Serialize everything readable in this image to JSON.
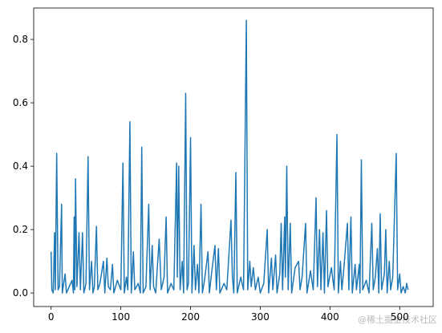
{
  "chart_data": {
    "type": "line",
    "color": "#1f77b4",
    "xlim": [
      -25,
      548
    ],
    "ylim": [
      -0.0428,
      0.899
    ],
    "xticks": [
      0,
      100,
      200,
      300,
      400,
      500
    ],
    "yticks": [
      {
        "value": 0,
        "label": "0.0"
      },
      {
        "value": 0.2,
        "label": "0.2"
      },
      {
        "value": 0.4,
        "label": "0.4"
      },
      {
        "value": 0.6,
        "label": "0.6"
      },
      {
        "value": 0.8,
        "label": "0.8"
      }
    ],
    "x": [
      0,
      1,
      3,
      5,
      6,
      8,
      10,
      12,
      15,
      16,
      18,
      20,
      22,
      26,
      30,
      32,
      33,
      34,
      35,
      37,
      40,
      42,
      45,
      47,
      50,
      53,
      55,
      58,
      60,
      62,
      65,
      67,
      70,
      75,
      77,
      80,
      82,
      85,
      88,
      90,
      95,
      100,
      103,
      105,
      108,
      110,
      113,
      115,
      118,
      120,
      125,
      128,
      130,
      132,
      136,
      140,
      142,
      145,
      147,
      150,
      155,
      158,
      162,
      165,
      167,
      172,
      176,
      180,
      181,
      183,
      185,
      188,
      190,
      193,
      195,
      197,
      200,
      202,
      205,
      207,
      210,
      212,
      215,
      217,
      220,
      225,
      227,
      230,
      235,
      237,
      240,
      242,
      248,
      252,
      258,
      260,
      262,
      265,
      267,
      272,
      276,
      280,
      282,
      285,
      287,
      290,
      293,
      297,
      300,
      305,
      310,
      312,
      316,
      318,
      322,
      324,
      328,
      330,
      332,
      335,
      336,
      338,
      340,
      343,
      345,
      350,
      355,
      357,
      360,
      365,
      367,
      372,
      376,
      380,
      382,
      385,
      387,
      390,
      392,
      395,
      397,
      402,
      406,
      410,
      412,
      415,
      417,
      420,
      425,
      427,
      430,
      432,
      436,
      438,
      442,
      443,
      445,
      447,
      452,
      456,
      460,
      462,
      465,
      468,
      470,
      472,
      474,
      478,
      480,
      482,
      485,
      487,
      490,
      495,
      497,
      500,
      502,
      505,
      508,
      510,
      512
    ],
    "values": [
      0.13,
      0.01,
      0.0,
      0.19,
      0.01,
      0.44,
      0.01,
      0.02,
      0.28,
      0.0,
      0.03,
      0.06,
      0.0,
      0.02,
      0.04,
      0.0,
      0.24,
      0.01,
      0.36,
      0.02,
      0.19,
      0.01,
      0.19,
      0.0,
      0.03,
      0.43,
      0.01,
      0.1,
      0.0,
      0.02,
      0.21,
      0.01,
      0.03,
      0.1,
      0.0,
      0.11,
      0.02,
      0.01,
      0.09,
      0.0,
      0.04,
      0.01,
      0.41,
      0.0,
      0.05,
      0.01,
      0.54,
      0.0,
      0.13,
      0.01,
      0.03,
      0.0,
      0.46,
      0.0,
      0.02,
      0.28,
      0.01,
      0.15,
      0.02,
      0.0,
      0.17,
      0.01,
      0.05,
      0.24,
      0.0,
      0.03,
      0.01,
      0.41,
      0.05,
      0.4,
      0.01,
      0.1,
      0.0,
      0.63,
      0.01,
      0.03,
      0.49,
      0.0,
      0.15,
      0.01,
      0.09,
      0.0,
      0.28,
      0.0,
      0.04,
      0.13,
      0.0,
      0.06,
      0.15,
      0.01,
      0.14,
      0.0,
      0.03,
      0.01,
      0.23,
      0.05,
      0.0,
      0.38,
      0.0,
      0.05,
      0.01,
      0.86,
      0.01,
      0.1,
      0.02,
      0.08,
      0.01,
      0.05,
      0.0,
      0.03,
      0.2,
      0.0,
      0.11,
      0.01,
      0.12,
      0.0,
      0.06,
      0.22,
      0.01,
      0.24,
      0.05,
      0.4,
      0.01,
      0.22,
      0.0,
      0.08,
      0.1,
      0.01,
      0.05,
      0.22,
      0.0,
      0.07,
      0.01,
      0.3,
      0.02,
      0.2,
      0.01,
      0.19,
      0.0,
      0.26,
      0.02,
      0.08,
      0.01,
      0.5,
      0.0,
      0.1,
      0.01,
      0.08,
      0.22,
      0.01,
      0.24,
      0.0,
      0.09,
      0.01,
      0.09,
      0.0,
      0.42,
      0.01,
      0.04,
      0.0,
      0.22,
      0.01,
      0.05,
      0.14,
      0.0,
      0.25,
      0.01,
      0.06,
      0.2,
      0.0,
      0.1,
      0.01,
      0.05,
      0.44,
      0.01,
      0.06,
      0.0,
      0.02,
      0.0,
      0.03,
      0.01
    ]
  },
  "watermark": "@稀土掘金技术社区"
}
